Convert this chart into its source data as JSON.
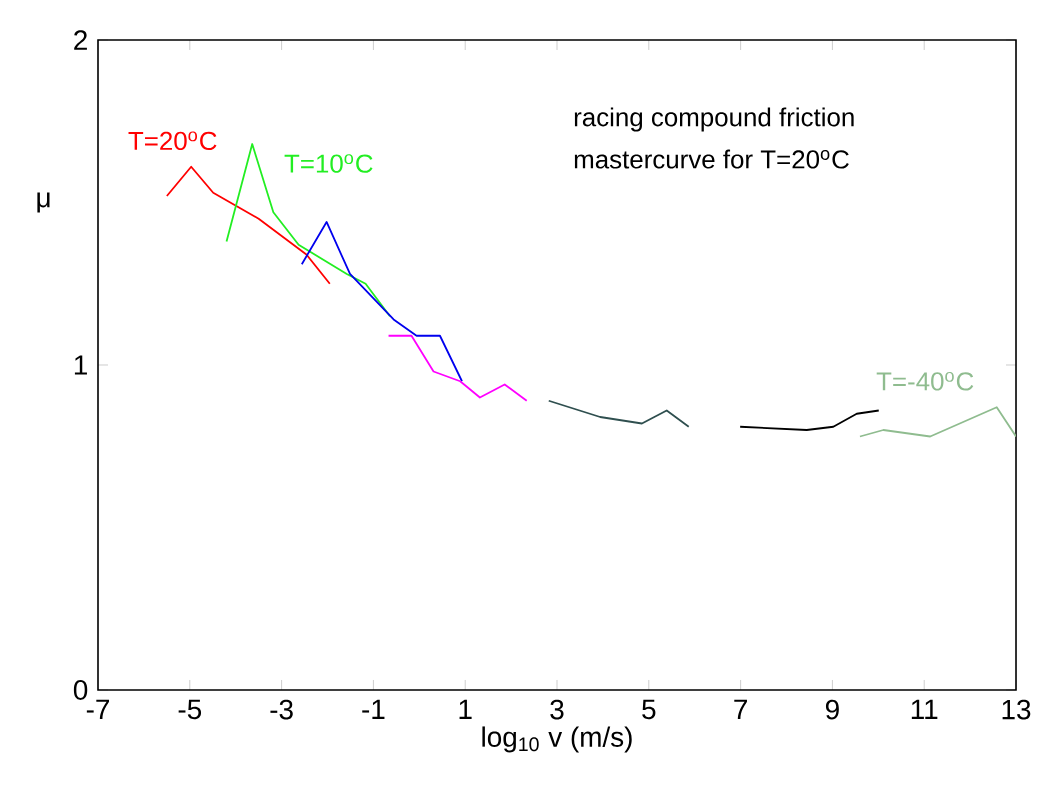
{
  "chart_data": {
    "type": "line",
    "xlabel": "log$_{10}$ v  (m/s)",
    "ylabel": "μ",
    "annotations": [
      "racing compound friction",
      "mastercurve for T=20$^{o}$C"
    ],
    "xlim": [
      -7,
      13
    ],
    "xticks": [
      -7,
      -5,
      -3,
      -1,
      1,
      3,
      5,
      7,
      9,
      11,
      13
    ],
    "ylim": [
      0,
      2
    ],
    "yticks": [
      0,
      1,
      2
    ],
    "grid": false,
    "marker": "none",
    "line_style": "solid",
    "series": [
      {
        "name": "T=20$^{o}$C",
        "color": "#ff0000",
        "x": [
          -5.5,
          -4.97,
          -4.49,
          -3.5,
          -2.46,
          -1.95
        ],
        "values": [
          1.52,
          1.61,
          1.53,
          1.45,
          1.34,
          1.25
        ]
      },
      {
        "name": "T=10$^{o}$C",
        "color": "#22ee22",
        "x": [
          -4.2,
          -3.64,
          -3.18,
          -2.63,
          -1.58,
          -1.17,
          -0.64
        ],
        "values": [
          1.38,
          1.68,
          1.47,
          1.37,
          1.28,
          1.25,
          1.15
        ]
      },
      {
        "color": "#0000ee",
        "x": [
          -2.56,
          -2.02,
          -1.51,
          -0.56,
          -0.06,
          0.45,
          0.93
        ],
        "values": [
          1.31,
          1.44,
          1.28,
          1.14,
          1.09,
          1.09,
          0.95
        ]
      },
      {
        "color": "#ff00ff",
        "x": [
          -0.67,
          -0.17,
          0.31,
          0.89,
          1.32,
          1.86,
          2.34
        ],
        "values": [
          1.09,
          1.09,
          0.98,
          0.95,
          0.9,
          0.94,
          0.89
        ]
      },
      {
        "color": "#2f4f4f",
        "x": [
          2.82,
          3.94,
          4.85,
          5.39,
          5.87
        ],
        "values": [
          0.89,
          0.84,
          0.82,
          0.86,
          0.81
        ]
      },
      {
        "color": "#000000",
        "x": [
          6.99,
          8.44,
          9.02,
          9.53,
          10.01
        ],
        "values": [
          0.81,
          0.8,
          0.81,
          0.85,
          0.86
        ]
      },
      {
        "name": "T=-40$^{o}$C",
        "color": "#8fbc8f",
        "x": [
          9.6,
          10.11,
          11.13,
          12.58,
          13.0
        ],
        "values": [
          0.78,
          0.8,
          0.78,
          0.87,
          0.78
        ]
      }
    ]
  }
}
